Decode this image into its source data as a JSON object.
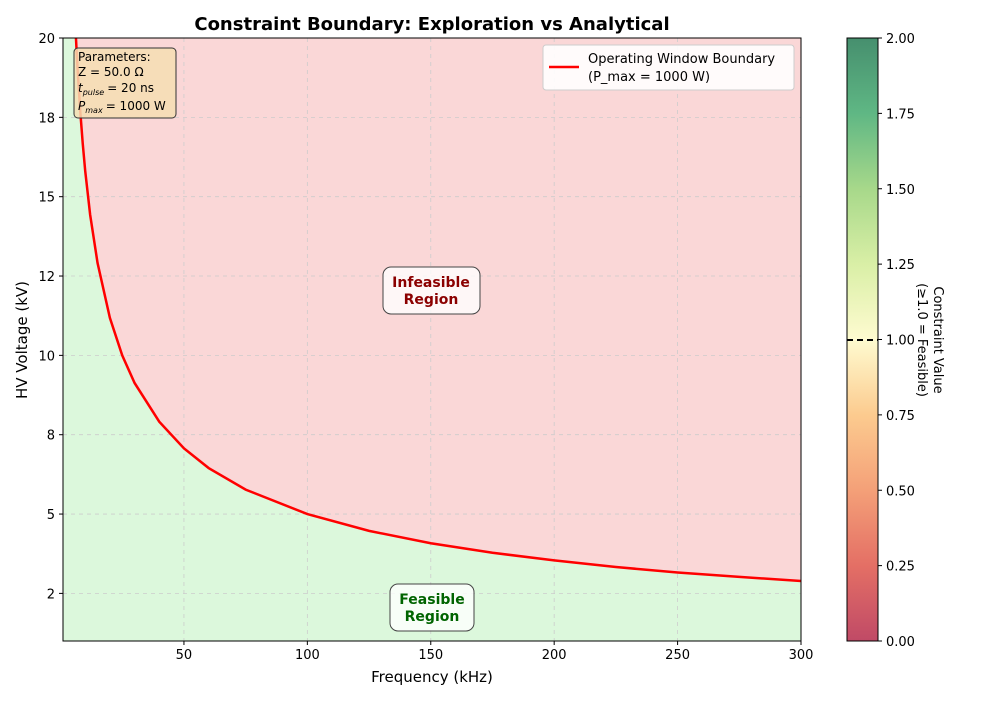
{
  "chart_data": {
    "type": "line",
    "title": "Constraint Boundary: Exploration vs Analytical",
    "xlabel": "Frequency (kHz)",
    "ylabel": "HV Voltage (kV)",
    "xlim": [
      1,
      300
    ],
    "ylim": [
      1,
      20
    ],
    "xticks": [
      50,
      100,
      150,
      200,
      250,
      300
    ],
    "xtick_labels": [
      "50",
      "100",
      "150",
      "200",
      "250",
      "300"
    ],
    "yticks": [
      2.5,
      5,
      7.5,
      10,
      12.5,
      15,
      17.5,
      20
    ],
    "ytick_labels": [
      "2",
      "5",
      "8",
      "10",
      "12",
      "15",
      "18",
      "20"
    ],
    "grid": true,
    "series": [
      {
        "name": "Operating Window Boundary",
        "name_suffix": "(P_max = 1000 W)",
        "color": "#ff0000",
        "x": [
          6.25,
          6.5,
          7,
          8,
          9,
          10,
          12,
          15,
          20,
          25,
          30,
          40,
          50,
          60,
          75,
          100,
          125,
          150,
          175,
          200,
          225,
          250,
          275,
          300
        ],
        "y": [
          20,
          19.61,
          18.9,
          17.68,
          16.67,
          15.81,
          14.43,
          12.91,
          11.18,
          10,
          9.13,
          7.91,
          7.07,
          6.45,
          5.77,
          5,
          4.47,
          4.08,
          3.78,
          3.54,
          3.33,
          3.16,
          3.02,
          2.89
        ]
      }
    ],
    "regions": {
      "feasible": {
        "label_line1": "Feasible",
        "label_line2": "Region",
        "fill": "#dcf8dc",
        "text_color": "#006400",
        "x": 150,
        "y": 1.7
      },
      "infeasible": {
        "label_line1": "Infeasible",
        "label_line2": "Region",
        "fill": "#fad7d7",
        "text_color": "#8b0000",
        "x": 150,
        "y": 11.6
      }
    },
    "legend": {
      "placement": "top-right"
    },
    "parameters_box": {
      "title": "Parameters:",
      "z": "Z = 50.0 Ω",
      "t_pulse": "= 20 ns",
      "p_max": "= 1000 W",
      "fill": "#f5deb3"
    },
    "colorbar": {
      "label_line1": "Constraint Value",
      "label_line2": "(≥1.0 = Feasible)",
      "range": [
        0,
        2
      ],
      "colormap": "RdYlGn",
      "ticks": [
        0,
        0.25,
        0.5,
        0.75,
        1.0,
        1.25,
        1.5,
        1.75,
        2.0
      ],
      "tick_labels": [
        "0.00",
        "0.25",
        "0.50",
        "0.75",
        "1.00",
        "1.25",
        "1.50",
        "1.75",
        "2.00"
      ],
      "threshold": 1.0
    }
  }
}
